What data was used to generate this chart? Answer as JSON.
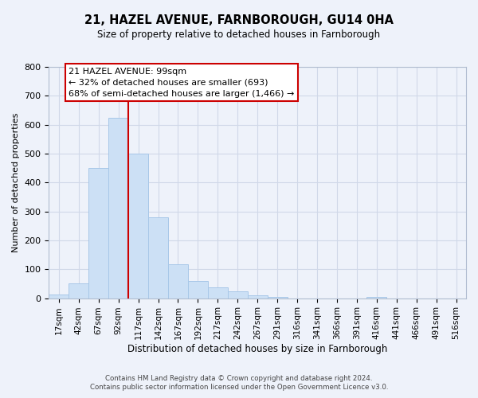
{
  "title": "21, HAZEL AVENUE, FARNBOROUGH, GU14 0HA",
  "subtitle": "Size of property relative to detached houses in Farnborough",
  "xlabel": "Distribution of detached houses by size in Farnborough",
  "ylabel": "Number of detached properties",
  "bar_labels": [
    "17sqm",
    "42sqm",
    "67sqm",
    "92sqm",
    "117sqm",
    "142sqm",
    "167sqm",
    "192sqm",
    "217sqm",
    "242sqm",
    "267sqm",
    "291sqm",
    "316sqm",
    "341sqm",
    "366sqm",
    "391sqm",
    "416sqm",
    "441sqm",
    "466sqm",
    "491sqm",
    "516sqm"
  ],
  "bar_values": [
    12,
    50,
    450,
    625,
    500,
    280,
    118,
    60,
    38,
    24,
    10,
    5,
    0,
    0,
    0,
    0,
    5,
    0,
    0,
    0,
    0
  ],
  "bar_color": "#cce0f5",
  "bar_edge_color": "#a8c8e8",
  "vline_x": 3.5,
  "vline_color": "#cc0000",
  "ylim": [
    0,
    800
  ],
  "yticks": [
    0,
    100,
    200,
    300,
    400,
    500,
    600,
    700,
    800
  ],
  "grid_color": "#d0d8e8",
  "annotation_line1": "21 HAZEL AVENUE: 99sqm",
  "annotation_line2": "← 32% of detached houses are smaller (693)",
  "annotation_line3": "68% of semi-detached houses are larger (1,466) →",
  "annotation_box_color": "#ffffff",
  "annotation_box_edge": "#cc0000",
  "footer_line1": "Contains HM Land Registry data © Crown copyright and database right 2024.",
  "footer_line2": "Contains public sector information licensed under the Open Government Licence v3.0.",
  "bg_color": "#eef2fa"
}
